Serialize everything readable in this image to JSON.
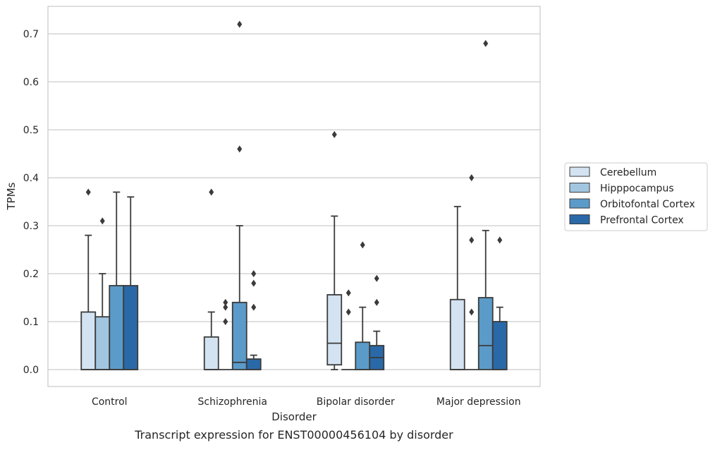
{
  "chart_data": {
    "type": "box",
    "caption": "Transcript expression for ENST00000456104 by disorder",
    "xlabel": "Disorder",
    "ylabel": "TPMs",
    "ylim": [
      -0.035,
      0.758
    ],
    "yticks": [
      "0.0",
      "0.1",
      "0.2",
      "0.3",
      "0.4",
      "0.5",
      "0.6",
      "0.7"
    ],
    "grid": "horizontal",
    "legend_position": "right",
    "categories": [
      "Control",
      "Schizophrenia",
      "Bipolar disorder",
      "Major depression"
    ],
    "series": [
      {
        "name": "Cerebellum",
        "color": "#d3e3f1",
        "boxes": [
          {
            "min": 0.0,
            "q1": 0.0,
            "median": 0.0,
            "q3": 0.12,
            "max": 0.28,
            "outliers": [
              0.37
            ]
          },
          {
            "min": 0.0,
            "q1": 0.0,
            "median": 0.0,
            "q3": 0.068,
            "max": 0.12,
            "outliers": [
              0.37
            ]
          },
          {
            "min": 0.0,
            "q1": 0.01,
            "median": 0.055,
            "q3": 0.156,
            "max": 0.32,
            "outliers": [
              0.49
            ]
          },
          {
            "min": 0.0,
            "q1": 0.0,
            "median": 0.0,
            "q3": 0.146,
            "max": 0.34,
            "outliers": []
          }
        ]
      },
      {
        "name": "Hipppocampus",
        "color": "#a3c6e0",
        "boxes": [
          {
            "min": 0.0,
            "q1": 0.0,
            "median": 0.0,
            "q3": 0.11,
            "max": 0.2,
            "outliers": [
              0.31
            ]
          },
          {
            "min": 0.0,
            "q1": 0.0,
            "median": 0.0,
            "q3": 0.0,
            "max": 0.0,
            "outliers": [
              0.1,
              0.13,
              0.14
            ]
          },
          {
            "min": 0.0,
            "q1": 0.0,
            "median": 0.0,
            "q3": 0.0,
            "max": 0.0,
            "outliers": [
              0.12,
              0.16
            ]
          },
          {
            "min": 0.0,
            "q1": 0.0,
            "median": 0.0,
            "q3": 0.0,
            "max": 0.0,
            "outliers": [
              0.12,
              0.27,
              0.4
            ]
          }
        ]
      },
      {
        "name": "Orbitofontal Cortex",
        "color": "#5b9bc9",
        "boxes": [
          {
            "min": 0.0,
            "q1": 0.0,
            "median": 0.0,
            "q3": 0.175,
            "max": 0.37,
            "outliers": []
          },
          {
            "min": 0.0,
            "q1": 0.0,
            "median": 0.015,
            "q3": 0.14,
            "max": 0.3,
            "outliers": [
              0.46,
              0.72
            ]
          },
          {
            "min": 0.0,
            "q1": 0.0,
            "median": 0.0,
            "q3": 0.057,
            "max": 0.13,
            "outliers": [
              0.26
            ]
          },
          {
            "min": 0.0,
            "q1": 0.0,
            "median": 0.05,
            "q3": 0.15,
            "max": 0.29,
            "outliers": [
              0.68
            ]
          }
        ]
      },
      {
        "name": "Prefrontal Cortex",
        "color": "#2a69a8",
        "boxes": [
          {
            "min": 0.0,
            "q1": 0.0,
            "median": 0.0,
            "q3": 0.175,
            "max": 0.36,
            "outliers": []
          },
          {
            "min": 0.0,
            "q1": 0.0,
            "median": 0.0,
            "q3": 0.022,
            "max": 0.03,
            "outliers": [
              0.13,
              0.18,
              0.2
            ]
          },
          {
            "min": 0.0,
            "q1": 0.0,
            "median": 0.025,
            "q3": 0.05,
            "max": 0.08,
            "outliers": [
              0.14,
              0.19
            ]
          },
          {
            "min": 0.0,
            "q1": 0.0,
            "median": 0.0,
            "q3": 0.1,
            "max": 0.13,
            "outliers": [
              0.27
            ]
          }
        ]
      }
    ]
  }
}
